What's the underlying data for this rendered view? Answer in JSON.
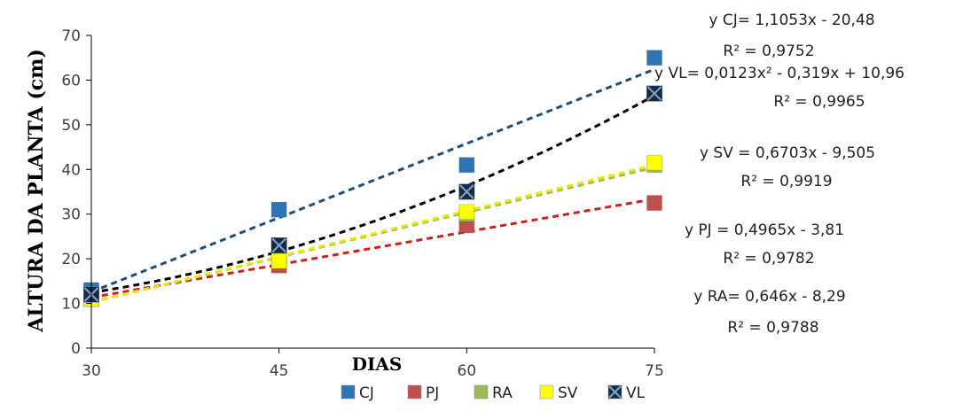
{
  "chart_data": {
    "type": "scatter",
    "ylabel": "ALTURA DA PLANTA (cm)",
    "xlabel": "DIAS",
    "x": [
      30,
      45,
      60,
      75
    ],
    "xlim": [
      30,
      75
    ],
    "ylim": [
      0,
      70
    ],
    "yticks": [
      0,
      10,
      20,
      30,
      40,
      50,
      60,
      70
    ],
    "legend_position": "bottom",
    "series": [
      {
        "name": "CJ",
        "color": "#2E75B6",
        "marker": "square",
        "values": [
          13,
          31,
          41,
          65
        ],
        "trend": {
          "type": "linear",
          "color": "#1F4E79",
          "equation": "y CJ= 1,1053x - 20,48",
          "r2": "R² = 0,9752"
        }
      },
      {
        "name": "PJ",
        "color": "#C0504D",
        "marker": "square",
        "values": [
          11,
          18.5,
          27.5,
          32.5
        ],
        "trend": {
          "type": "linear",
          "color": "#D0201A",
          "equation": "y PJ = 0,4965x - 3,81",
          "r2": "R² = 0,9782"
        }
      },
      {
        "name": "RA",
        "color": "#9BBB59",
        "marker": "square",
        "values": [
          11,
          19.5,
          30,
          41
        ],
        "trend": {
          "type": "linear",
          "color": "#9BBB59",
          "equation": "y RA= 0,646x - 8,29",
          "r2": "R² = 0,9788"
        }
      },
      {
        "name": "SV",
        "color": "#FFFF00",
        "marker": "square",
        "values": [
          11,
          19.5,
          30.5,
          41.5
        ],
        "trend": {
          "type": "linear",
          "color": "#E8E800",
          "equation": "y SV = 0,6703x - 9,505",
          "r2": "R² = 0,9919"
        }
      },
      {
        "name": "VL",
        "color": "#000000",
        "marker": "x-square",
        "values": [
          12,
          23,
          35,
          57
        ],
        "trend": {
          "type": "poly2",
          "color": "#000000",
          "equation": "y VL= 0,0123x² - 0,319x + 10,96",
          "r2": "R² = 0,9965"
        }
      }
    ]
  }
}
